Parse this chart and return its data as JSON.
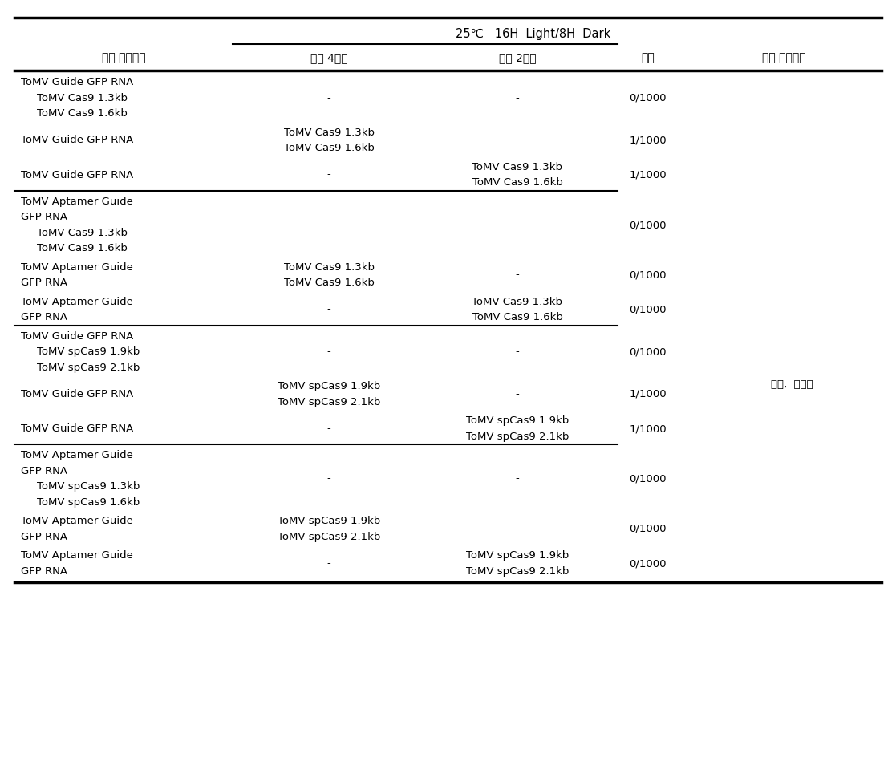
{
  "header_top": "25℃   16H  Light/8H  Dark",
  "headers": [
    "접종 바이러스",
    "개화 4주전",
    "개화 2주전",
    "효율",
    "적용 가능작물"
  ],
  "side_label": "고추,  토마토",
  "rows": [
    {
      "col0_lines": [
        "ToMV Guide GFP RNA",
        "  ToMV Cas9 1.3kb",
        "  ToMV Cas9 1.6kb"
      ],
      "col1_lines": [
        "-"
      ],
      "col2_lines": [
        "-"
      ],
      "col3": "0/1000",
      "section_sep_after": false
    },
    {
      "col0_lines": [
        "ToMV Guide GFP RNA"
      ],
      "col1_lines": [
        "ToMV Cas9 1.3kb",
        "ToMV Cas9 1.6kb"
      ],
      "col2_lines": [
        "-"
      ],
      "col3": "1/1000",
      "section_sep_after": false
    },
    {
      "col0_lines": [
        "ToMV Guide GFP RNA"
      ],
      "col1_lines": [
        "-"
      ],
      "col2_lines": [
        "ToMV Cas9 1.3kb",
        "ToMV Cas9 1.6kb"
      ],
      "col3": "1/1000",
      "section_sep_after": true
    },
    {
      "col0_lines": [
        "ToMV Aptamer Guide",
        "GFP RNA",
        "  ToMV Cas9 1.3kb",
        "  ToMV Cas9 1.6kb"
      ],
      "col1_lines": [
        "-"
      ],
      "col2_lines": [
        "-"
      ],
      "col3": "0/1000",
      "section_sep_after": false
    },
    {
      "col0_lines": [
        "ToMV Aptamer Guide",
        "GFP RNA"
      ],
      "col1_lines": [
        "ToMV Cas9 1.3kb",
        "ToMV Cas9 1.6kb"
      ],
      "col2_lines": [
        "-"
      ],
      "col3": "0/1000",
      "section_sep_after": false
    },
    {
      "col0_lines": [
        "ToMV Aptamer Guide",
        "GFP RNA"
      ],
      "col1_lines": [
        "-"
      ],
      "col2_lines": [
        "ToMV Cas9 1.3kb",
        "ToMV Cas9 1.6kb"
      ],
      "col3": "0/1000",
      "section_sep_after": true
    },
    {
      "col0_lines": [
        "ToMV Guide GFP RNA",
        " ToMV spCas9 1.9kb",
        " ToMV spCas9 2.1kb"
      ],
      "col1_lines": [
        "-"
      ],
      "col2_lines": [
        "-"
      ],
      "col3": "0/1000",
      "section_sep_after": false
    },
    {
      "col0_lines": [
        "ToMV Guide GFP RNA"
      ],
      "col1_lines": [
        "ToMV spCas9 1.9kb",
        "ToMV spCas9 2.1kb"
      ],
      "col2_lines": [
        "-"
      ],
      "col3": "1/1000",
      "section_sep_after": false
    },
    {
      "col0_lines": [
        "ToMV Guide GFP RNA"
      ],
      "col1_lines": [
        "-"
      ],
      "col2_lines": [
        "ToMV spCas9 1.9kb",
        "ToMV spCas9 2.1kb"
      ],
      "col3": "1/1000",
      "section_sep_after": true
    },
    {
      "col0_lines": [
        "ToMV Aptamer Guide",
        "GFP RNA",
        "  ToMV spCas9 1.3kb",
        "  ToMV spCas9 1.6kb"
      ],
      "col1_lines": [
        "-"
      ],
      "col2_lines": [
        "-"
      ],
      "col3": "0/1000",
      "section_sep_after": false
    },
    {
      "col0_lines": [
        "ToMV Aptamer Guide",
        "GFP RNA"
      ],
      "col1_lines": [
        "ToMV spCas9 1.9kb",
        "ToMV spCas9 2.1kb"
      ],
      "col2_lines": [
        "-"
      ],
      "col3": "0/1000",
      "section_sep_after": false
    },
    {
      "col0_lines": [
        "ToMV Aptamer Guide",
        "GFP RNA"
      ],
      "col1_lines": [
        "-"
      ],
      "col2_lines": [
        "ToMV spCas9 1.9kb",
        "ToMV spCas9 2.1kb"
      ],
      "col3": "0/1000",
      "section_sep_after": false
    }
  ],
  "font_size": 9.5,
  "header_font_size": 10.0,
  "bg_color": "#ffffff",
  "text_color": "#000000",
  "line_color": "#000000"
}
